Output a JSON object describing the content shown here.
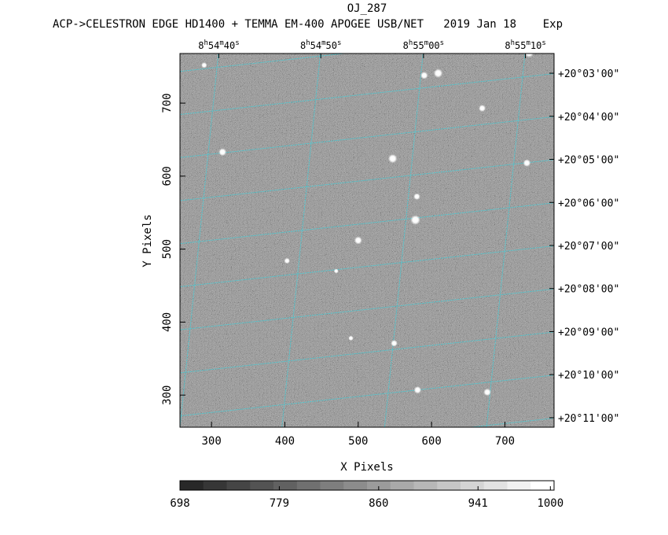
{
  "chart_data": {
    "type": "heatmap",
    "title": "OJ_287",
    "subtitle": "ACP->CELESTRON EDGE HD1400 + TEMMA EM-400 APOGEE USB/NET   2019 Jan 18    Exp",
    "xlabel": "X Pixels",
    "ylabel": "Y Pixels",
    "xlim": [
      257,
      767
    ],
    "ylim": [
      256,
      768
    ],
    "x_ticks": [
      300,
      400,
      500,
      600,
      700
    ],
    "y_ticks": [
      300,
      400,
      500,
      600,
      700
    ],
    "ra_ticks": [
      {
        "x": 310,
        "label": "8h54m40s"
      },
      {
        "x": 449,
        "label": "8h54m50s"
      },
      {
        "x": 589,
        "label": "8h55m00s"
      },
      {
        "x": 728,
        "label": "8h55m10s"
      }
    ],
    "dec_ticks": [
      {
        "y": 741,
        "label": "+20°03'00\""
      },
      {
        "y": 682,
        "label": "+20°04'00\""
      },
      {
        "y": 623,
        "label": "+20°05'00\""
      },
      {
        "y": 564,
        "label": "+20°06'00\""
      },
      {
        "y": 505,
        "label": "+20°07'00\""
      },
      {
        "y": 446,
        "label": "+20°08'00\""
      },
      {
        "y": 387,
        "label": "+20°09'00\""
      },
      {
        "y": 328,
        "label": "+20°10'00\""
      },
      {
        "y": 269,
        "label": "+20°11'00\""
      }
    ],
    "stars": [
      {
        "x": 290,
        "y": 752,
        "mag": 0.35
      },
      {
        "x": 315,
        "y": 633,
        "mag": 0.6
      },
      {
        "x": 500,
        "y": 512,
        "mag": 0.6
      },
      {
        "x": 547,
        "y": 624,
        "mag": 0.75
      },
      {
        "x": 578,
        "y": 540,
        "mag": 0.85
      },
      {
        "x": 580,
        "y": 572,
        "mag": 0.45
      },
      {
        "x": 590,
        "y": 738,
        "mag": 0.55
      },
      {
        "x": 609,
        "y": 741,
        "mag": 0.75
      },
      {
        "x": 669,
        "y": 693,
        "mag": 0.5
      },
      {
        "x": 730,
        "y": 618,
        "mag": 0.55
      },
      {
        "x": 733,
        "y": 769,
        "mag": 0.8
      },
      {
        "x": 403,
        "y": 484,
        "mag": 0.35
      },
      {
        "x": 549,
        "y": 371,
        "mag": 0.45
      },
      {
        "x": 581,
        "y": 307,
        "mag": 0.55
      },
      {
        "x": 676,
        "y": 304,
        "mag": 0.55
      },
      {
        "x": 490,
        "y": 378,
        "mag": 0.25
      },
      {
        "x": 470,
        "y": 470,
        "mag": 0.2
      }
    ],
    "colorbar": {
      "ticks": [
        {
          "value": 698,
          "label": "698"
        },
        {
          "value": 779,
          "label": "779"
        },
        {
          "value": 860,
          "label": "860"
        },
        {
          "value": 941,
          "label": "941"
        },
        {
          "value": 1000,
          "label": "1000"
        }
      ],
      "range": [
        698,
        1003
      ],
      "levels": 16
    },
    "grid": true,
    "grid_color": "#4fc6cf"
  }
}
